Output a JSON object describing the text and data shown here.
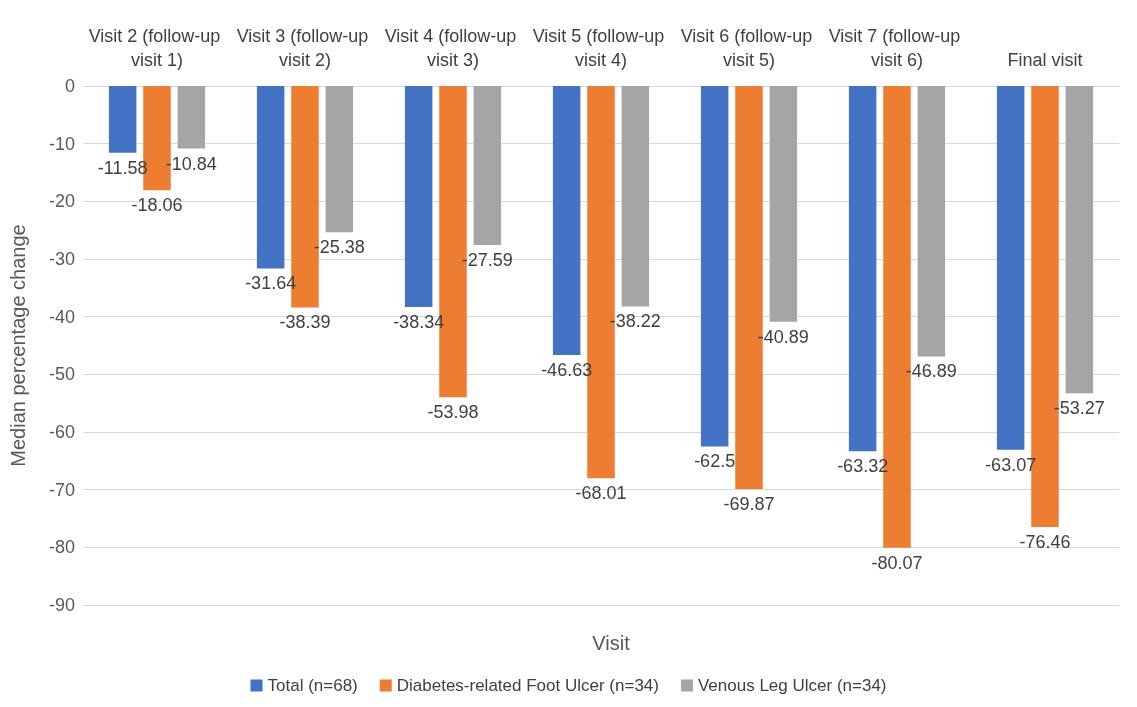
{
  "chart_data": {
    "type": "bar",
    "xlabel": "Visit",
    "ylabel": "Median percentage change",
    "categories": [
      "Visit 2 (follow-up visit 1)",
      "Visit 3 (follow-up visit 2)",
      "Visit 4 (follow-up visit 3)",
      "Visit 5 (follow-up visit 4)",
      "Visit 6 (follow-up visit 5)",
      "Visit 7 (follow-up visit 6)",
      "Final visit"
    ],
    "series": [
      {
        "name": "Total (n=68)",
        "color": "#4472c4",
        "values": [
          -11.58,
          -31.64,
          -38.34,
          -46.63,
          -62.5,
          -63.32,
          -63.07
        ]
      },
      {
        "name": "Diabetes-related Foot Ulcer (n=34)",
        "color": "#ed7d31",
        "values": [
          -18.06,
          -38.39,
          -53.98,
          -68.01,
          -69.87,
          -80.07,
          -76.46
        ]
      },
      {
        "name": "Venous Leg Ulcer (n=34)",
        "color": "#a5a5a5",
        "values": [
          -10.84,
          -25.38,
          -27.59,
          -38.22,
          -40.89,
          -46.89,
          -53.27
        ]
      }
    ],
    "ylim": [
      -90,
      0
    ],
    "yticks": [
      -90,
      -80,
      -70,
      -60,
      -50,
      -40,
      -30,
      -20,
      -10,
      0
    ],
    "grid": "y",
    "legend": "bottom",
    "data_labels": true
  }
}
